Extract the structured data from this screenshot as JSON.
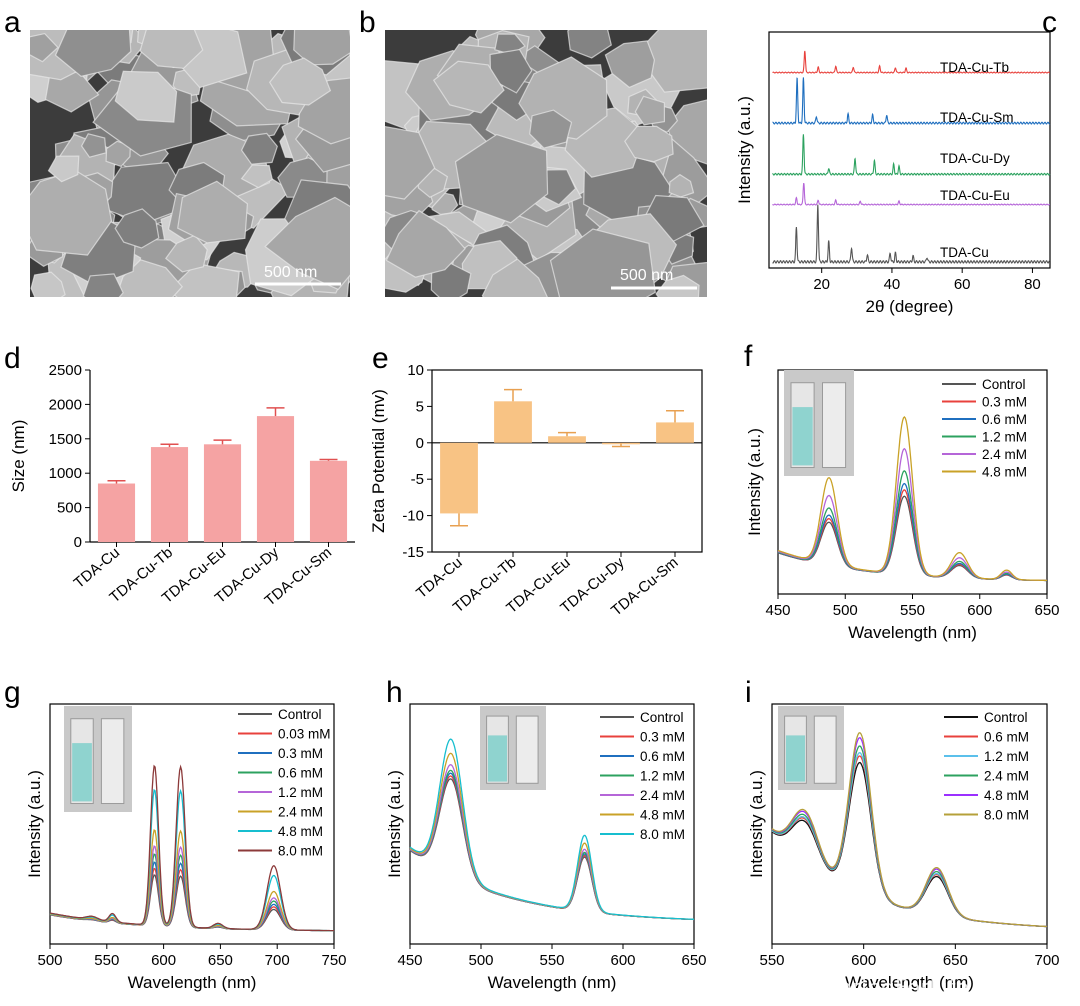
{
  "figure": {
    "panels": {
      "a": {
        "label": "a",
        "scale_bar": "500 nm"
      },
      "b": {
        "label": "b",
        "scale_bar": "500 nm"
      }
    },
    "watermark": "知乎 @EngineeringForLife"
  },
  "chart_data": [
    {
      "panel": "c",
      "type": "line",
      "xlabel": "2θ (degree)",
      "ylabel": "Intensity (a.u.)",
      "xlim": [
        5,
        85
      ],
      "xticks": [
        20,
        40,
        60,
        80
      ],
      "series": [
        {
          "name": "TDA-Cu-Tb",
          "color": "#e8413c",
          "peaks": [
            [
              15.2,
              1.0
            ],
            [
              19,
              0.25
            ],
            [
              24,
              0.3
            ],
            [
              29,
              0.25
            ],
            [
              36.5,
              0.3
            ],
            [
              41,
              0.22
            ],
            [
              44,
              0.2
            ]
          ]
        },
        {
          "name": "TDA-Cu-Sm",
          "color": "#1f6fbf",
          "peaks": [
            [
              13.0,
              1.0
            ],
            [
              14.8,
              1.0
            ],
            [
              18.5,
              0.15
            ],
            [
              27.5,
              0.2
            ],
            [
              34.5,
              0.18
            ],
            [
              38.5,
              0.18
            ]
          ]
        },
        {
          "name": "TDA-Cu-Dy",
          "color": "#2ca25f",
          "peaks": [
            [
              14.8,
              1.0
            ],
            [
              22,
              0.15
            ],
            [
              29.5,
              0.4
            ],
            [
              35,
              0.35
            ],
            [
              40.5,
              0.25
            ],
            [
              42,
              0.2
            ]
          ]
        },
        {
          "name": "TDA-Cu-Eu",
          "color": "#b565d8",
          "peaks": [
            [
              12.8,
              0.3
            ],
            [
              14.9,
              1.0
            ],
            [
              19,
              0.2
            ],
            [
              24,
              0.2
            ],
            [
              31,
              0.15
            ],
            [
              42,
              0.15
            ]
          ]
        },
        {
          "name": "TDA-Cu",
          "color": "#555555",
          "peaks": [
            [
              12.8,
              0.6
            ],
            [
              18.9,
              1.0
            ],
            [
              22,
              0.35
            ],
            [
              28.5,
              0.25
            ],
            [
              33,
              0.12
            ],
            [
              39.5,
              0.15
            ],
            [
              41,
              0.15
            ],
            [
              46,
              0.1
            ],
            [
              50,
              0.08
            ]
          ]
        }
      ]
    },
    {
      "panel": "d",
      "type": "bar",
      "ylabel": "Size (nm)",
      "ylim": [
        0,
        2500
      ],
      "yticks": [
        0,
        500,
        1000,
        1500,
        2000,
        2500
      ],
      "categories": [
        "TDA-Cu",
        "TDA-Cu-Tb",
        "TDA-Cu-Eu",
        "TDA-Cu-Dy",
        "TDA-Cu-Sm"
      ],
      "values": [
        850,
        1380,
        1420,
        1830,
        1180
      ],
      "errors": [
        40,
        40,
        60,
        120,
        20
      ],
      "color": "#f5a3a3",
      "error_color": "#e05050"
    },
    {
      "panel": "e",
      "type": "bar",
      "ylabel": "Zeta Potential (mv)",
      "ylim": [
        -15,
        10
      ],
      "yticks": [
        -15,
        -10,
        -5,
        0,
        5,
        10
      ],
      "categories": [
        "TDA-Cu",
        "TDA-Cu-Tb",
        "TDA-Cu-Eu",
        "TDA-Cu-Dy",
        "TDA-Cu-Sm"
      ],
      "values": [
        -9.7,
        5.7,
        0.9,
        -0.1,
        2.8
      ],
      "errors": [
        1.7,
        1.6,
        0.5,
        0.4,
        1.6
      ],
      "color": "#f8c384",
      "error_color": "#e8a050"
    },
    {
      "panel": "f",
      "type": "line",
      "xlabel": "Wavelength (nm)",
      "ylabel": "Intensity (a.u.)",
      "xlim": [
        450,
        650
      ],
      "xticks": [
        450,
        500,
        550,
        600,
        650
      ],
      "peaks": [
        [
          488,
          6,
          0.55
        ],
        [
          544,
          6,
          1.0
        ],
        [
          585,
          6,
          0.16
        ],
        [
          620,
          4,
          0.06
        ]
      ],
      "baseline": [
        0.2,
        0.0
      ],
      "series": [
        {
          "name": "Control",
          "color": "#555555",
          "scale": 0.5
        },
        {
          "name": "0.3 mM",
          "color": "#e8413c",
          "scale": 0.54
        },
        {
          "name": "0.6 mM",
          "color": "#1f6fbf",
          "scale": 0.58
        },
        {
          "name": "1.2 mM",
          "color": "#2ca25f",
          "scale": 0.66
        },
        {
          "name": "2.4 mM",
          "color": "#b565d8",
          "scale": 0.8
        },
        {
          "name": "4.8 mM",
          "color": "#c9a227",
          "scale": 1.0
        }
      ]
    },
    {
      "panel": "g",
      "type": "line",
      "xlabel": "Wavelength (nm)",
      "ylabel": "Intensity (a.u.)",
      "xlim": [
        500,
        750
      ],
      "xticks": [
        500,
        550,
        600,
        650,
        700,
        750
      ],
      "peaks": [
        [
          537,
          5,
          0.02
        ],
        [
          555,
          3,
          0.05
        ],
        [
          592,
          3.5,
          0.95
        ],
        [
          615,
          4,
          0.95
        ],
        [
          648,
          4,
          0.03
        ],
        [
          697,
          6,
          0.38
        ]
      ],
      "baseline": [
        0.11,
        0.0
      ],
      "series": [
        {
          "name": "Control",
          "color": "#555555",
          "scale": 0.32
        },
        {
          "name": "0.03 mM",
          "color": "#e8413c",
          "scale": 0.36
        },
        {
          "name": "0.3 mM",
          "color": "#1f6fbf",
          "scale": 0.4
        },
        {
          "name": "0.6 mM",
          "color": "#2ca25f",
          "scale": 0.45
        },
        {
          "name": "1.2 mM",
          "color": "#b565d8",
          "scale": 0.5
        },
        {
          "name": "2.4 mM",
          "color": "#c9a227",
          "scale": 0.6
        },
        {
          "name": "4.8 mM",
          "color": "#17becf",
          "scale": 0.85
        },
        {
          "name": "8.0 mM",
          "color": "#8c3a3a",
          "scale": 1.0
        }
      ]
    },
    {
      "panel": "h",
      "type": "line",
      "xlabel": "Wavelength (nm)",
      "ylabel": "Intensity (a.u.)",
      "xlim": [
        450,
        650
      ],
      "xticks": [
        450,
        500,
        550,
        600,
        650
      ],
      "peaks": [
        [
          479,
          8,
          0.8
        ],
        [
          573,
          5,
          0.45
        ]
      ],
      "baseline": [
        0.45,
        0.05
      ],
      "series": [
        {
          "name": "Control",
          "color": "#555555",
          "scale": 0.72
        },
        {
          "name": "0.3 mM",
          "color": "#e8413c",
          "scale": 0.74
        },
        {
          "name": "0.6 mM",
          "color": "#1f6fbf",
          "scale": 0.76
        },
        {
          "name": "1.2 mM",
          "color": "#2ca25f",
          "scale": 0.78
        },
        {
          "name": "2.4 mM",
          "color": "#b565d8",
          "scale": 0.82
        },
        {
          "name": "4.8 mM",
          "color": "#c9a227",
          "scale": 0.9
        },
        {
          "name": "8.0 mM",
          "color": "#17becf",
          "scale": 1.0
        }
      ]
    },
    {
      "panel": "i",
      "type": "line",
      "xlabel": "Wavelength (nm)",
      "ylabel": "Intensity (a.u.)",
      "xlim": [
        550,
        700
      ],
      "xticks": [
        550,
        600,
        650,
        700
      ],
      "peaks": [
        [
          568,
          7,
          0.3
        ],
        [
          598,
          6,
          0.95
        ],
        [
          640,
          6,
          0.28
        ]
      ],
      "baseline": [
        0.6,
        0.0
      ],
      "series": [
        {
          "name": "Control",
          "color": "#111111",
          "scale": 0.82
        },
        {
          "name": "0.6 mM",
          "color": "#e8413c",
          "scale": 0.86
        },
        {
          "name": "1.2 mM",
          "color": "#5bc0eb",
          "scale": 0.88
        },
        {
          "name": "2.4 mM",
          "color": "#2ca25f",
          "scale": 0.92
        },
        {
          "name": "4.8 mM",
          "color": "#9b30ff",
          "scale": 0.97
        },
        {
          "name": "8.0 mM",
          "color": "#b5a03a",
          "scale": 1.0
        }
      ]
    }
  ]
}
